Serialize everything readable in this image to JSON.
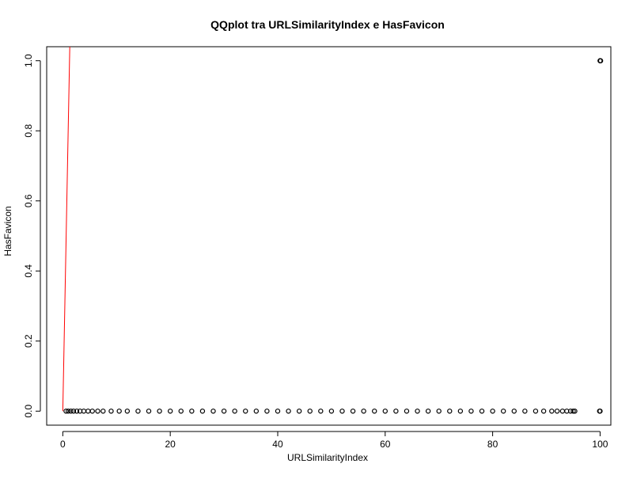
{
  "chart_data": {
    "type": "scatter",
    "title": "QQplot tra URLSimilarityIndex e HasFavicon",
    "xlabel": "URLSimilarityIndex",
    "ylabel": "HasFavicon",
    "xlim": [
      -3,
      102
    ],
    "ylim": [
      -0.04,
      1.04
    ],
    "x_ticks": [
      0,
      20,
      40,
      60,
      80,
      100
    ],
    "y_ticks": [
      0.0,
      0.2,
      0.4,
      0.6,
      0.8,
      1.0
    ],
    "x_tick_labels": [
      "0",
      "20",
      "40",
      "60",
      "80",
      "100"
    ],
    "y_tick_labels": [
      "0.0",
      "0.2",
      "0.4",
      "0.6",
      "0.8",
      "1.0"
    ],
    "grid": false,
    "legend": "none",
    "series": [
      {
        "marker": "open-circle",
        "color": "#000000",
        "x": [
          0.6,
          1.0,
          1.5,
          2.0,
          2.6,
          3.2,
          3.9,
          4.7,
          5.5,
          6.5,
          7.5,
          9.0,
          10.5,
          12.0,
          14.0,
          16.0,
          18.0,
          20.0,
          22.0,
          24.0,
          26.0,
          28.0,
          30.0,
          32.0,
          34.0,
          36.0,
          38.0,
          40.0,
          42.0,
          44.0,
          46.0,
          48.0,
          50.0,
          52.0,
          54.0,
          56.0,
          58.0,
          60.0,
          62.0,
          64.0,
          66.0,
          68.0,
          70.0,
          72.0,
          74.0,
          76.0,
          78.0,
          80.0,
          82.0,
          84.0,
          86.0,
          88.0,
          89.5,
          91.0,
          92.0,
          93.0,
          93.8,
          94.5,
          95.0,
          95.3,
          99.9,
          100.0,
          100.0,
          100.0,
          100.1
        ],
        "y": [
          0,
          0,
          0,
          0,
          0,
          0,
          0,
          0,
          0,
          0,
          0,
          0,
          0,
          0,
          0,
          0,
          0,
          0,
          0,
          0,
          0,
          0,
          0,
          0,
          0,
          0,
          0,
          0,
          0,
          0,
          0,
          0,
          0,
          0,
          0,
          0,
          0,
          0,
          0,
          0,
          0,
          0,
          0,
          0,
          0,
          0,
          0,
          0,
          0,
          0,
          0,
          0,
          0,
          0,
          0,
          0,
          0,
          0,
          0,
          0,
          0,
          0,
          1,
          1,
          1
        ]
      }
    ],
    "reference_line": {
      "color": "#ff0000",
      "x": [
        0,
        1.3
      ],
      "y": [
        0,
        1.04
      ]
    }
  }
}
